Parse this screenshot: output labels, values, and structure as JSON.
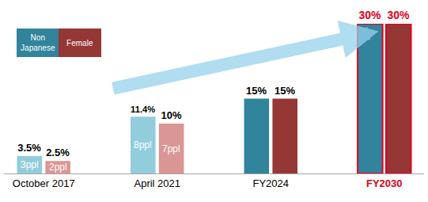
{
  "chart_data": {
    "type": "bar",
    "categories": [
      "October 2017",
      "April 2021",
      "FY2024",
      "FY2030"
    ],
    "series": [
      {
        "name": "Non Japanese",
        "color": "#31849b",
        "colors": [
          "#92cddc",
          "#92cddc",
          "#31849b",
          "#31849b"
        ],
        "values": [
          3.5,
          11.4,
          15,
          30
        ],
        "value_labels": [
          "3.5%",
          "11.4%",
          "15%",
          "30%"
        ],
        "inner_labels": [
          "3ppl",
          "8ppl",
          null,
          null
        ]
      },
      {
        "name": "Female",
        "color": "#953735",
        "colors": [
          "#da9694",
          "#da9694",
          "#953735",
          "#953735"
        ],
        "values": [
          2.5,
          10,
          15,
          30
        ],
        "value_labels": [
          "2.5%",
          "10%",
          "15%",
          "30%"
        ],
        "inner_labels": [
          "2ppl",
          "7ppl",
          null,
          null
        ]
      }
    ],
    "ylim": [
      0,
      30
    ],
    "legend": "upper left",
    "data_labels": true,
    "tick_labels": "x",
    "grid": false
  }
}
